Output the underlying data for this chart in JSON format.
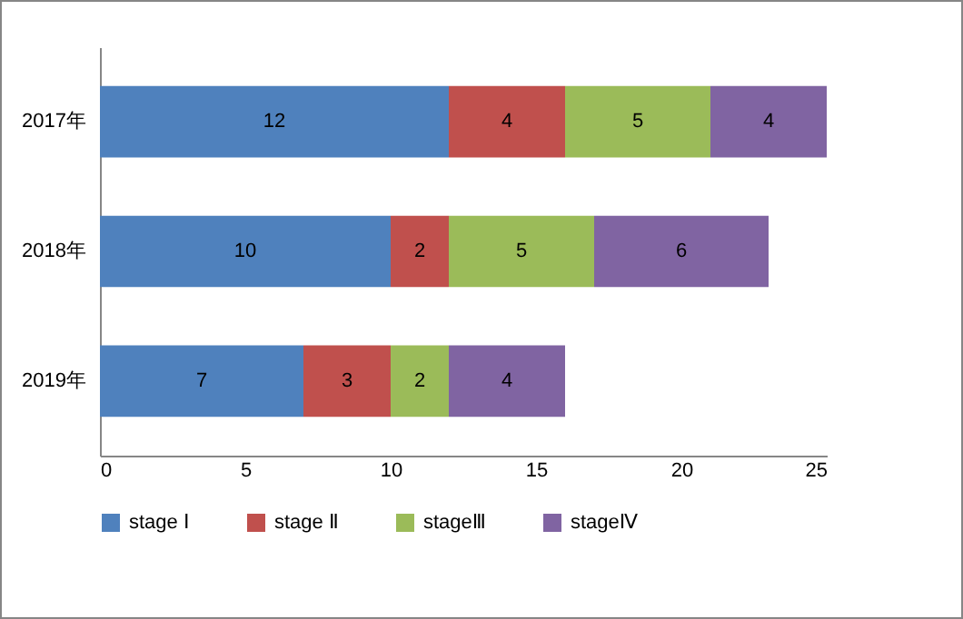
{
  "chart_data": {
    "type": "bar",
    "orientation": "horizontal",
    "stacked": true,
    "data_labels": true,
    "grid": false,
    "legend": "bottom",
    "categories": [
      "2017年",
      "2018年",
      "2019年"
    ],
    "series": [
      {
        "name": "stage Ⅰ",
        "color": "#4f81bd",
        "values": [
          12,
          10,
          7
        ]
      },
      {
        "name": "stage Ⅱ",
        "color": "#c0504d",
        "values": [
          4,
          2,
          3
        ]
      },
      {
        "name": "stageⅢ",
        "color": "#9bbb59",
        "values": [
          5,
          5,
          2
        ]
      },
      {
        "name": "stageⅣ",
        "color": "#8064a2",
        "values": [
          4,
          6,
          4
        ]
      }
    ],
    "xlim": [
      0,
      25
    ],
    "xticks": [
      0,
      5,
      10,
      15,
      20,
      25
    ]
  }
}
